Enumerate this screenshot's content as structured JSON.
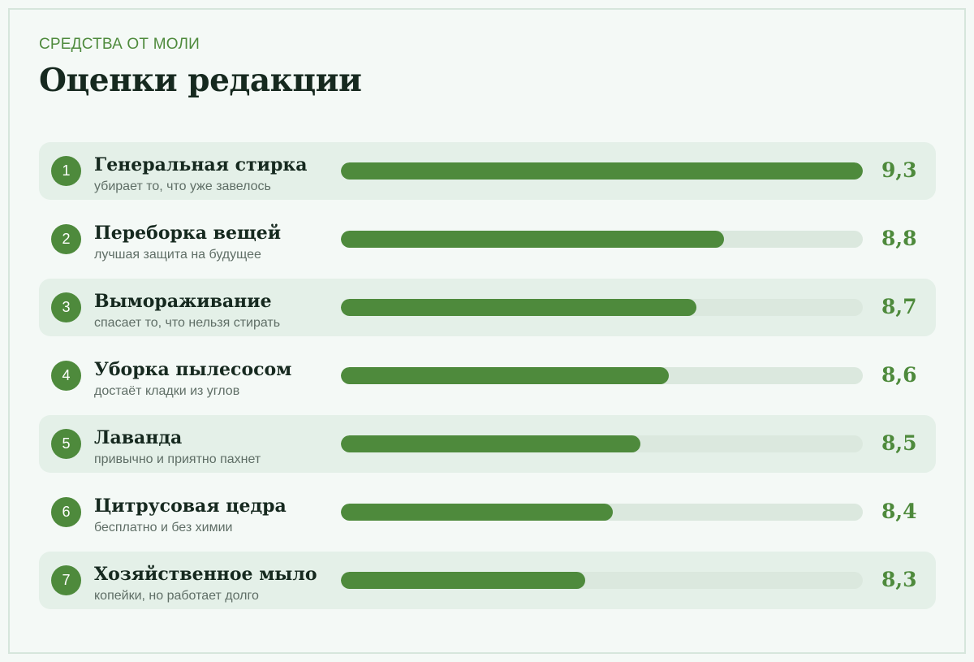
{
  "header": {
    "kicker": "СРЕДСТВА ОТ МОЛИ",
    "title": "Оценки редакции"
  },
  "colors": {
    "accent": "#4e8a3c",
    "track": "#dbe8de",
    "row_shade": "#e4f0e8",
    "background": "#f4f9f6",
    "title": "#16291f"
  },
  "chart_data": {
    "type": "bar",
    "orientation": "horizontal",
    "categories": [
      "Генеральная стирка",
      "Переборка вещей",
      "Вымораживание",
      "Уборка пылесосом",
      "Лаванда",
      "Цитрусовая цедра",
      "Хозяйственное мыло"
    ],
    "values": [
      9.3,
      8.8,
      8.7,
      8.6,
      8.5,
      8.4,
      8.3
    ],
    "value_labels": [
      "9,3",
      "8,8",
      "8,7",
      "8,6",
      "8,5",
      "8,4",
      "8,3"
    ],
    "ranks": [
      "1",
      "2",
      "3",
      "4",
      "5",
      "6",
      "7"
    ],
    "descriptions": [
      "убирает то, что уже завелось",
      "лучшая защита на будущее",
      "спасает то, что нельзя стирать",
      "достаёт кладки из углов",
      "привычно и приятно пахнет",
      "бесплатно и без химии",
      "копейки, но работает долго"
    ],
    "xlim": [
      7.42,
      9.3
    ],
    "grid": false,
    "legend": "none"
  }
}
